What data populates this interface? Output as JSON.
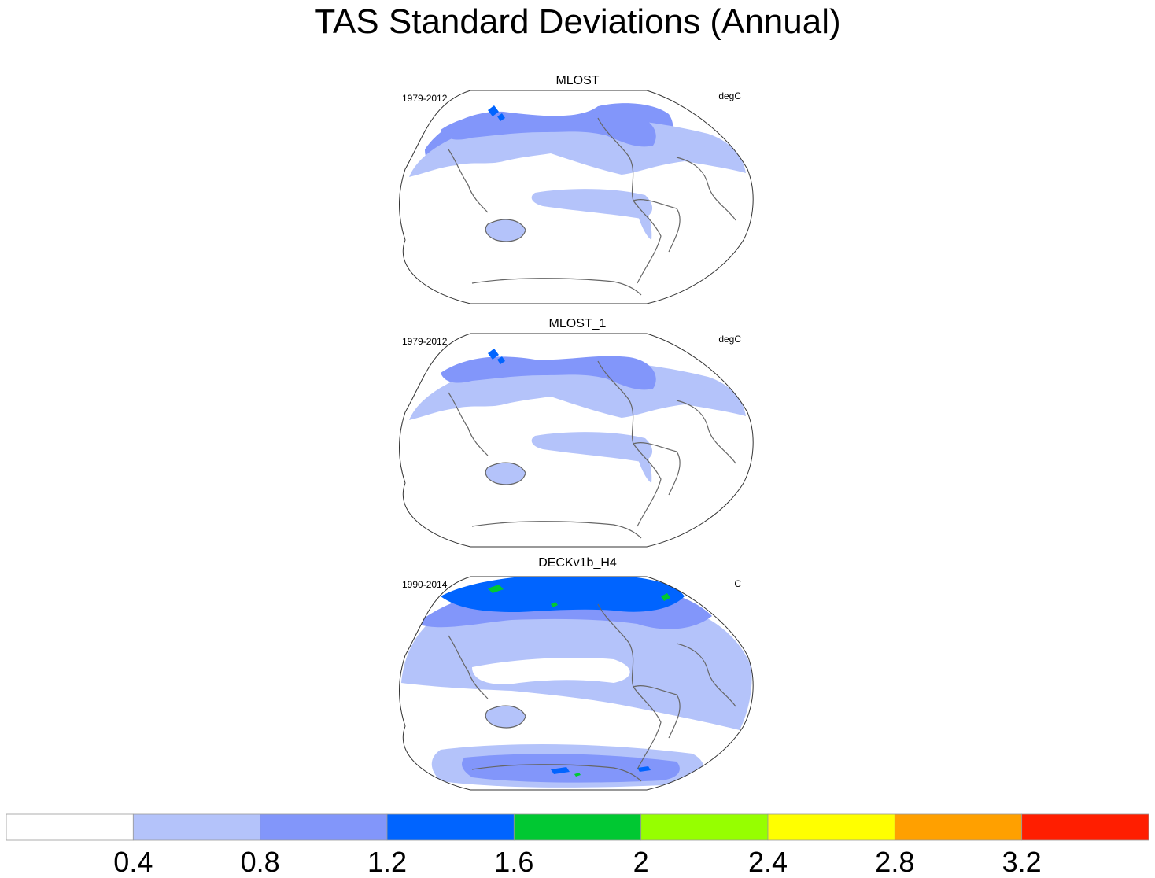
{
  "title": "TAS Standard Deviations (Annual)",
  "chart_data": {
    "type": "heatmap",
    "variable": "TAS",
    "panels": [
      {
        "name": "MLOST",
        "period": "1979-2012",
        "units": "degC",
        "bands": [
          {
            "region": "arctic-eurasia-north-america",
            "level": 0.8
          },
          {
            "region": "siberia-core",
            "level": 1.2
          },
          {
            "region": "northern-midlatitudes",
            "level": 0.4
          },
          {
            "region": "tropical-pacific",
            "level": 0.4
          },
          {
            "region": "australia",
            "level": 0.4
          }
        ]
      },
      {
        "name": "MLOST_1",
        "period": "1979-2012",
        "units": "degC",
        "bands": [
          {
            "region": "arctic-eurasia-north-america",
            "level": 0.8
          },
          {
            "region": "siberia-core",
            "level": 1.2
          },
          {
            "region": "northern-midlatitudes",
            "level": 0.4
          },
          {
            "region": "tropical-pacific",
            "level": 0.4
          },
          {
            "region": "australia",
            "level": 0.4
          }
        ]
      },
      {
        "name": "DECKv1b_H4",
        "period": "1990-2014",
        "units": "C",
        "bands": [
          {
            "region": "arctic",
            "level": 1.2
          },
          {
            "region": "arctic-hotspots",
            "level": 1.6
          },
          {
            "region": "northern-high-latitudes",
            "level": 0.8
          },
          {
            "region": "northern-midlatitudes",
            "level": 0.4
          },
          {
            "region": "tropical-pacific",
            "level": 0.4
          },
          {
            "region": "southern-ocean",
            "level": 0.4
          },
          {
            "region": "antarctica",
            "level": 0.8
          },
          {
            "region": "antarctic-interior",
            "level": 1.2
          }
        ]
      }
    ],
    "colorbar": {
      "levels": [
        0.4,
        0.8,
        1.2,
        1.6,
        2,
        2.4,
        2.8,
        3.2
      ],
      "tick_labels": [
        "0.4",
        "0.8",
        "1.2",
        "1.6",
        "2",
        "2.4",
        "2.8",
        "3.2"
      ],
      "colors": [
        "#ffffff",
        "#b4c3fa",
        "#8296fa",
        "#0064ff",
        "#00c832",
        "#96ff00",
        "#ffff00",
        "#ffa000",
        "#ff1e00"
      ],
      "orientation": "horizontal",
      "placement": "bottom"
    }
  }
}
